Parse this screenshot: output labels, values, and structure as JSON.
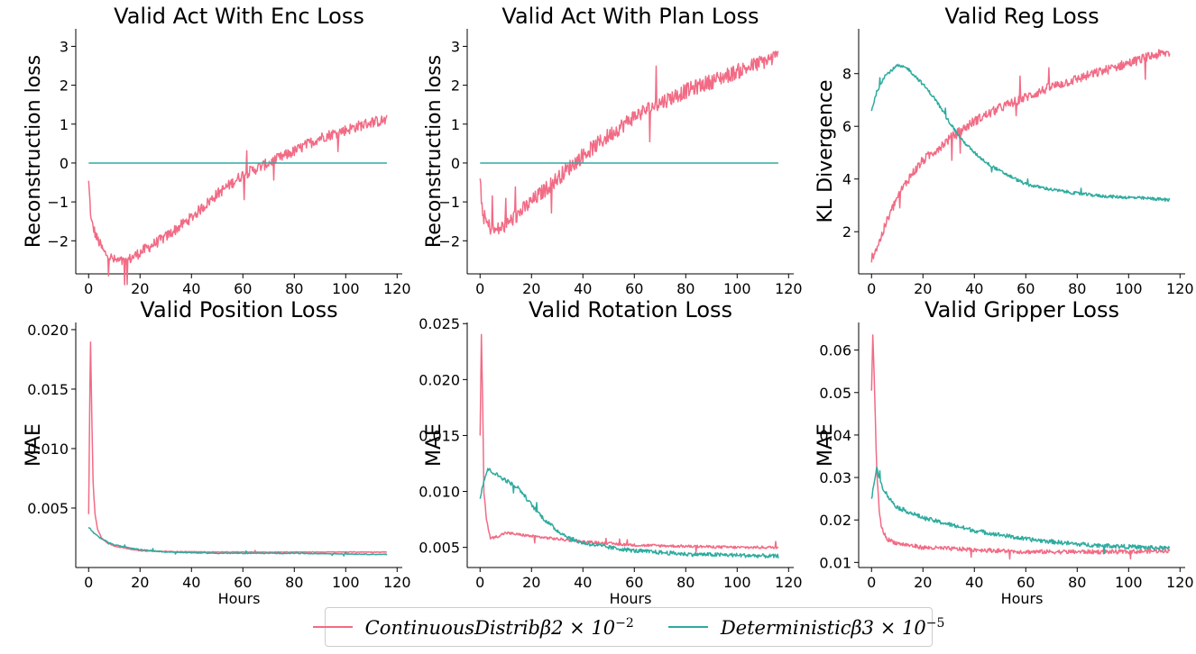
{
  "colors": {
    "continuous": "#f26b85",
    "deterministic": "#2fab9f"
  },
  "legend": {
    "items": [
      {
        "series": "continuous",
        "text": "ContinuousDistribβ2 × 10",
        "exp": "−2"
      },
      {
        "series": "deterministic",
        "text": "Deterministicβ3 × 10",
        "exp": "−5"
      }
    ]
  },
  "chart_data": [
    {
      "type": "line",
      "title": "Valid Act With Enc Loss",
      "xlabel": "",
      "ylabel": "Reconstruction loss",
      "xlim": [
        -5,
        122
      ],
      "ylim": [
        -2.85,
        3.45
      ],
      "xticks": [
        0,
        20,
        40,
        60,
        80,
        100,
        120
      ],
      "yticks": [
        -2,
        -1,
        0,
        1,
        2,
        3
      ],
      "ytick_labels": [
        "−2",
        "−1",
        "0",
        "1",
        "2",
        "3"
      ],
      "series": [
        {
          "key": "continuous",
          "noise": 0.14,
          "points": [
            [
              0,
              -0.5
            ],
            [
              1,
              -1.5
            ],
            [
              3,
              -1.9
            ],
            [
              6,
              -2.3
            ],
            [
              10,
              -2.5
            ],
            [
              14,
              -2.55
            ],
            [
              20,
              -2.3
            ],
            [
              30,
              -1.9
            ],
            [
              40,
              -1.4
            ],
            [
              50,
              -0.8
            ],
            [
              60,
              -0.3
            ],
            [
              70,
              0.0
            ],
            [
              80,
              0.3
            ],
            [
              90,
              0.65
            ],
            [
              100,
              0.85
            ],
            [
              110,
              1.05
            ],
            [
              116,
              1.1
            ]
          ]
        },
        {
          "key": "deterministic",
          "noise": 0,
          "points": [
            [
              0,
              0.0
            ],
            [
              116,
              0.0
            ]
          ]
        }
      ]
    },
    {
      "type": "line",
      "title": "Valid Act With Plan Loss",
      "xlabel": "",
      "ylabel": "Reconstruction loss",
      "xlim": [
        -5,
        122
      ],
      "ylim": [
        -2.85,
        3.45
      ],
      "xticks": [
        0,
        20,
        40,
        60,
        80,
        100,
        120
      ],
      "yticks": [
        -2,
        -1,
        0,
        1,
        2,
        3
      ],
      "ytick_labels": [
        "−2",
        "−1",
        "0",
        "1",
        "2",
        "3"
      ],
      "series": [
        {
          "key": "continuous",
          "noise": 0.2,
          "points": [
            [
              0,
              -0.45
            ],
            [
              1,
              -1.3
            ],
            [
              3,
              -1.6
            ],
            [
              6,
              -1.75
            ],
            [
              10,
              -1.6
            ],
            [
              20,
              -1.0
            ],
            [
              30,
              -0.4
            ],
            [
              40,
              0.2
            ],
            [
              50,
              0.7
            ],
            [
              60,
              1.2
            ],
            [
              70,
              1.55
            ],
            [
              80,
              1.85
            ],
            [
              90,
              2.1
            ],
            [
              100,
              2.35
            ],
            [
              110,
              2.6
            ],
            [
              116,
              2.75
            ]
          ]
        },
        {
          "key": "deterministic",
          "noise": 0,
          "points": [
            [
              0,
              0.0
            ],
            [
              116,
              0.0
            ]
          ]
        }
      ]
    },
    {
      "type": "line",
      "title": "Valid Reg Loss",
      "xlabel": "",
      "ylabel": "KL Divergence",
      "xlim": [
        -5,
        122
      ],
      "ylim": [
        0.4,
        9.7
      ],
      "xticks": [
        0,
        20,
        40,
        60,
        80,
        100,
        120
      ],
      "yticks": [
        2,
        4,
        6,
        8
      ],
      "ytick_labels": [
        "2",
        "4",
        "6",
        "8"
      ],
      "series": [
        {
          "key": "continuous",
          "noise": 0.18,
          "points": [
            [
              0,
              1.0
            ],
            [
              3,
              1.6
            ],
            [
              6,
              2.4
            ],
            [
              10,
              3.3
            ],
            [
              15,
              4.1
            ],
            [
              20,
              4.7
            ],
            [
              30,
              5.5
            ],
            [
              40,
              6.2
            ],
            [
              50,
              6.7
            ],
            [
              60,
              7.1
            ],
            [
              70,
              7.5
            ],
            [
              80,
              7.8
            ],
            [
              90,
              8.1
            ],
            [
              100,
              8.4
            ],
            [
              110,
              8.7
            ],
            [
              116,
              8.8
            ]
          ]
        },
        {
          "key": "deterministic",
          "noise": 0.06,
          "points": [
            [
              0,
              6.6
            ],
            [
              2,
              7.3
            ],
            [
              5,
              7.9
            ],
            [
              10,
              8.3
            ],
            [
              14,
              8.2
            ],
            [
              20,
              7.6
            ],
            [
              25,
              7.0
            ],
            [
              30,
              6.2
            ],
            [
              35,
              5.5
            ],
            [
              40,
              5.0
            ],
            [
              45,
              4.6
            ],
            [
              50,
              4.3
            ],
            [
              60,
              3.8
            ],
            [
              70,
              3.6
            ],
            [
              80,
              3.45
            ],
            [
              90,
              3.35
            ],
            [
              100,
              3.3
            ],
            [
              110,
              3.25
            ],
            [
              116,
              3.2
            ]
          ]
        }
      ]
    },
    {
      "type": "line",
      "title": "Valid Position Loss",
      "xlabel": "Hours",
      "ylabel": "MAE",
      "xlim": [
        -5,
        122
      ],
      "ylim": [
        0.0,
        0.0206
      ],
      "xticks": [
        0,
        20,
        40,
        60,
        80,
        100,
        120
      ],
      "yticks": [
        0.005,
        0.01,
        0.015,
        0.02
      ],
      "ytick_labels": [
        "0.005",
        "0.010",
        "0.015",
        "0.020"
      ],
      "series": [
        {
          "key": "continuous",
          "noise": 3e-05,
          "points": [
            [
              0,
              0.0045
            ],
            [
              0.7,
              0.0196
            ],
            [
              1.3,
              0.012
            ],
            [
              1.8,
              0.0067
            ],
            [
              2.5,
              0.0045
            ],
            [
              3.5,
              0.0032
            ],
            [
              5,
              0.0025
            ],
            [
              7,
              0.0021
            ],
            [
              10,
              0.0018
            ],
            [
              15,
              0.0016
            ],
            [
              20,
              0.0014
            ],
            [
              30,
              0.00135
            ],
            [
              50,
              0.0013
            ],
            [
              80,
              0.0013
            ],
            [
              116,
              0.0013
            ]
          ]
        },
        {
          "key": "deterministic",
          "noise": 4e-05,
          "points": [
            [
              0,
              0.0034
            ],
            [
              2,
              0.0029
            ],
            [
              5,
              0.0024
            ],
            [
              10,
              0.0019
            ],
            [
              20,
              0.0015
            ],
            [
              30,
              0.0013
            ],
            [
              50,
              0.0012
            ],
            [
              80,
              0.0012
            ],
            [
              116,
              0.0011
            ]
          ]
        }
      ]
    },
    {
      "type": "line",
      "title": "Valid Rotation Loss",
      "xlabel": "Hours",
      "ylabel": "MAE",
      "xlim": [
        -5,
        122
      ],
      "ylim": [
        0.0032,
        0.0251
      ],
      "xticks": [
        0,
        20,
        40,
        60,
        80,
        100,
        120
      ],
      "yticks": [
        0.005,
        0.01,
        0.015,
        0.02,
        0.025
      ],
      "ytick_labels": [
        "0.005",
        "0.010",
        "0.015",
        "0.020",
        "0.025"
      ],
      "series": [
        {
          "key": "continuous",
          "noise": 0.00012,
          "points": [
            [
              0,
              0.015
            ],
            [
              0.5,
              0.024
            ],
            [
              1,
              0.018
            ],
            [
              1.5,
              0.01
            ],
            [
              2.5,
              0.0075
            ],
            [
              4,
              0.0058
            ],
            [
              7,
              0.006
            ],
            [
              10,
              0.0063
            ],
            [
              20,
              0.006
            ],
            [
              40,
              0.0055
            ],
            [
              60,
              0.0052
            ],
            [
              80,
              0.0051
            ],
            [
              100,
              0.005
            ],
            [
              116,
              0.005
            ]
          ]
        },
        {
          "key": "deterministic",
          "noise": 0.00018,
          "points": [
            [
              0,
              0.0095
            ],
            [
              1.5,
              0.011
            ],
            [
              3,
              0.012
            ],
            [
              10,
              0.011
            ],
            [
              15,
              0.0103
            ],
            [
              20,
              0.0088
            ],
            [
              25,
              0.0075
            ],
            [
              30,
              0.0065
            ],
            [
              35,
              0.0058
            ],
            [
              40,
              0.0054
            ],
            [
              50,
              0.005
            ],
            [
              60,
              0.0047
            ],
            [
              80,
              0.0044
            ],
            [
              100,
              0.0043
            ],
            [
              116,
              0.0042
            ]
          ]
        }
      ]
    },
    {
      "type": "line",
      "title": "Valid Gripper Loss",
      "xlabel": "Hours",
      "ylabel": "MAE",
      "xlim": [
        -5,
        122
      ],
      "ylim": [
        0.0088,
        0.0665
      ],
      "xticks": [
        0,
        20,
        40,
        60,
        80,
        100,
        120
      ],
      "yticks": [
        0.01,
        0.02,
        0.03,
        0.04,
        0.05,
        0.06
      ],
      "ytick_labels": [
        "0.01",
        "0.02",
        "0.03",
        "0.04",
        "0.05",
        "0.06"
      ],
      "series": [
        {
          "key": "continuous",
          "noise": 0.0005,
          "points": [
            [
              0,
              0.05
            ],
            [
              0.5,
              0.064
            ],
            [
              1,
              0.055
            ],
            [
              2,
              0.032
            ],
            [
              3,
              0.022
            ],
            [
              4,
              0.018
            ],
            [
              6,
              0.0155
            ],
            [
              10,
              0.0145
            ],
            [
              20,
              0.0135
            ],
            [
              40,
              0.013
            ],
            [
              60,
              0.0125
            ],
            [
              80,
              0.0125
            ],
            [
              100,
              0.0125
            ],
            [
              116,
              0.0128
            ]
          ]
        },
        {
          "key": "deterministic",
          "noise": 0.0005,
          "points": [
            [
              0,
              0.025
            ],
            [
              1,
              0.029
            ],
            [
              2,
              0.032
            ],
            [
              4,
              0.028
            ],
            [
              7,
              0.025
            ],
            [
              10,
              0.023
            ],
            [
              20,
              0.0205
            ],
            [
              30,
              0.019
            ],
            [
              40,
              0.0175
            ],
            [
              60,
              0.0155
            ],
            [
              80,
              0.0143
            ],
            [
              100,
              0.0137
            ],
            [
              116,
              0.0133
            ]
          ]
        }
      ]
    }
  ]
}
